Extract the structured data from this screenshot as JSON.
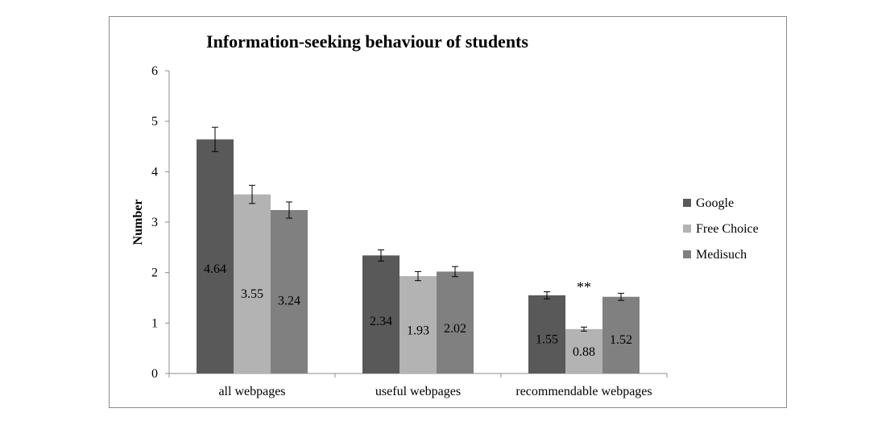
{
  "chart_data": {
    "type": "bar",
    "title": "Information-seeking behaviour of students",
    "xlabel": "",
    "ylabel": "Number",
    "ylim": [
      0,
      6
    ],
    "yticks": [
      0,
      1,
      2,
      3,
      4,
      5,
      6
    ],
    "categories": [
      "all webpages",
      "useful webpages",
      "recommendable webpages"
    ],
    "series": [
      {
        "name": "Google",
        "color": "#595959",
        "values": [
          4.64,
          2.34,
          1.55
        ],
        "error": [
          0.24,
          0.11,
          0.07
        ],
        "labels": [
          "4.64",
          "2.34",
          "1.55"
        ]
      },
      {
        "name": "Free Choice",
        "color": "#b3b3b3",
        "values": [
          3.55,
          1.93,
          0.88
        ],
        "error": [
          0.18,
          0.09,
          0.04
        ],
        "labels": [
          "3.55",
          "1.93",
          "0.88"
        ]
      },
      {
        "name": "Medisuch",
        "color": "#808080",
        "values": [
          3.24,
          2.02,
          1.52
        ],
        "error": [
          0.16,
          0.1,
          0.07
        ],
        "labels": [
          "3.24",
          "2.02",
          "1.52"
        ]
      }
    ],
    "annotations": [
      {
        "text": "**",
        "category_index": 2,
        "series_index": 1,
        "value": 2.0
      }
    ],
    "legend_position": "right",
    "grid": false
  }
}
